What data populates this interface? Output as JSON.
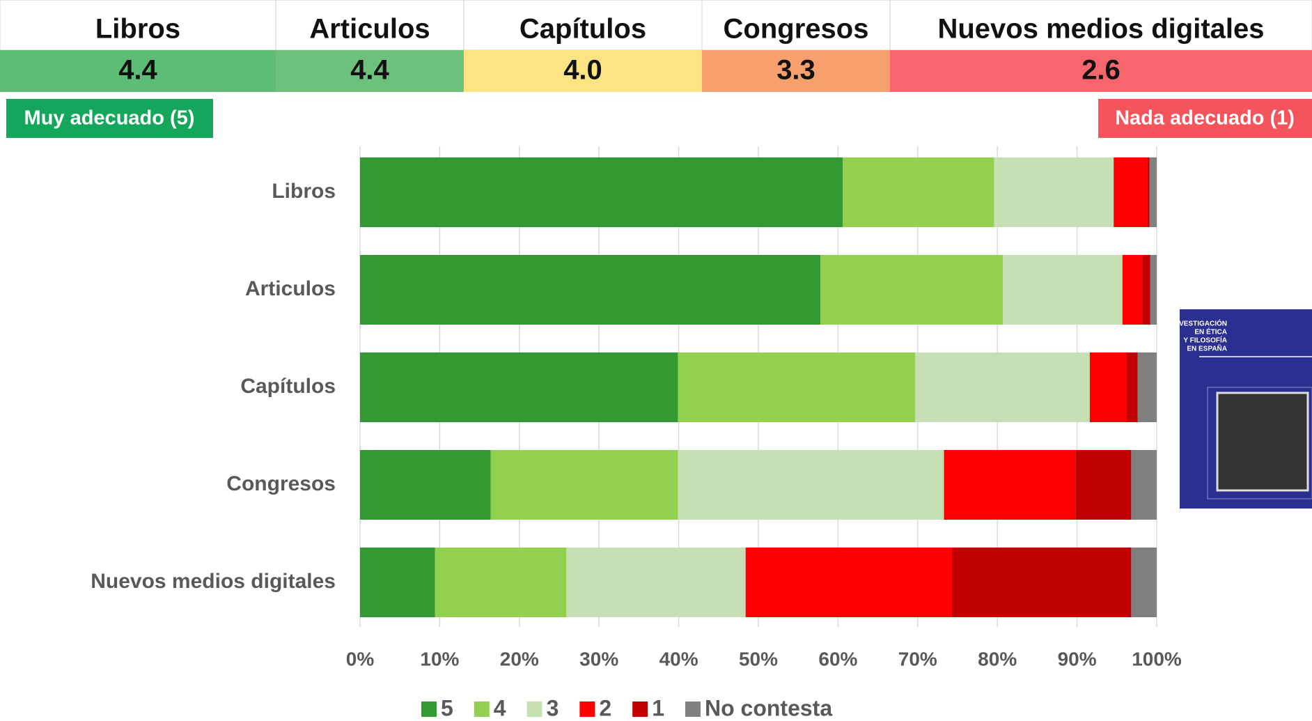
{
  "score_table": {
    "columns": [
      {
        "name": "Libros",
        "score": "4.4",
        "color": "#5dbd77"
      },
      {
        "name": "Articulos",
        "score": "4.4",
        "color": "#6cc27a"
      },
      {
        "name": "Capítulos",
        "score": "4.0",
        "color": "#fde482"
      },
      {
        "name": "Congresos",
        "score": "3.3",
        "color": "#f7a06d"
      },
      {
        "name": "Nuevos medios digitales",
        "score": "2.6",
        "color": "#f8666d"
      }
    ]
  },
  "scale_labels": {
    "high": "Muy adecuado (5)",
    "high_color": "#14a75b",
    "low": "Nada adecuado (1)",
    "low_color": "#f4545c"
  },
  "cover": {
    "title": [
      "INVESTIGACIÓN",
      "EN ÉTICA",
      "Y FILOSOFÍA",
      "EN ESPAÑA"
    ]
  },
  "chart_data": {
    "type": "bar",
    "orientation": "horizontal",
    "stacked": true,
    "grid": true,
    "categories": [
      "Libros",
      "Articulos",
      "Capítulos",
      "Congresos",
      "Nuevos medios digitales"
    ],
    "series": [
      {
        "name": "5",
        "color": "#339933",
        "values": [
          60.6,
          57.8,
          39.9,
          16.4,
          9.4
        ]
      },
      {
        "name": "4",
        "color": "#92d050",
        "values": [
          19.0,
          22.9,
          29.8,
          23.5,
          16.5
        ]
      },
      {
        "name": "3",
        "color": "#c6e0b4",
        "values": [
          15.0,
          15.0,
          21.9,
          33.4,
          22.5
        ]
      },
      {
        "name": "2",
        "color": "#ff0000",
        "values": [
          4.2,
          2.5,
          4.6,
          16.5,
          25.9
        ]
      },
      {
        "name": "1",
        "color": "#c00000",
        "values": [
          0.3,
          1.0,
          1.4,
          7.0,
          22.5
        ]
      },
      {
        "name": "No contesta",
        "color": "#808080",
        "values": [
          0.9,
          0.8,
          2.4,
          3.2,
          3.2
        ]
      }
    ],
    "xlim": [
      0,
      100
    ],
    "xticks": [
      {
        "value": 0,
        "label": "0%"
      },
      {
        "value": 10,
        "label": "10%"
      },
      {
        "value": 20,
        "label": "20%"
      },
      {
        "value": 30,
        "label": "30%"
      },
      {
        "value": 40,
        "label": "40%"
      },
      {
        "value": 50,
        "label": "50%"
      },
      {
        "value": 60,
        "label": "60%"
      },
      {
        "value": 70,
        "label": "70%"
      },
      {
        "value": 80,
        "label": "80%"
      },
      {
        "value": 90,
        "label": "90%"
      },
      {
        "value": 100,
        "label": "100%"
      }
    ]
  }
}
